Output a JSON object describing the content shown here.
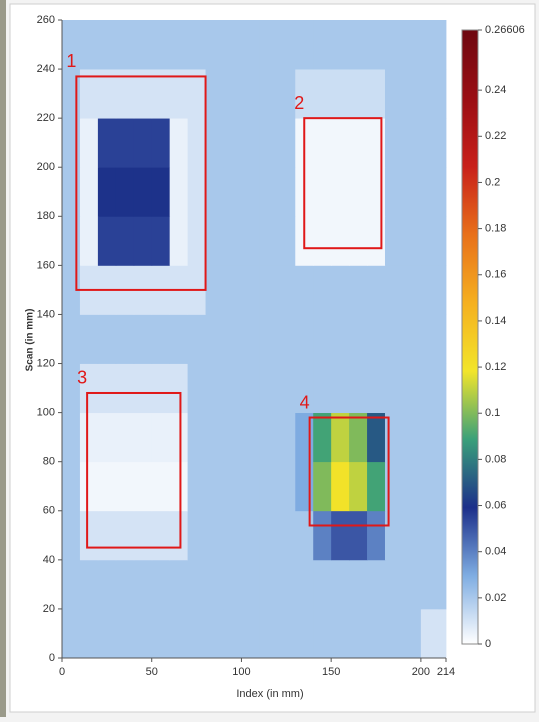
{
  "chart_data": {
    "type": "heatmap",
    "x_label": "Index (in mm)",
    "y_label": "Scan (in mm)",
    "xlim": [
      0,
      214
    ],
    "ylim": [
      0,
      260
    ],
    "xticks": [
      0,
      50,
      100,
      150,
      200,
      214
    ],
    "yticks": [
      0,
      20,
      40,
      60,
      80,
      100,
      120,
      140,
      160,
      180,
      200,
      220,
      240,
      260
    ],
    "x_bins": [
      0,
      10,
      20,
      30,
      40,
      50,
      60,
      70,
      80,
      90,
      100,
      110,
      120,
      130,
      140,
      150,
      160,
      170,
      180,
      190,
      200,
      210,
      214
    ],
    "y_bins": [
      0,
      20,
      40,
      60,
      80,
      100,
      120,
      140,
      160,
      180,
      200,
      220,
      240,
      260
    ],
    "z": [
      [
        0.02,
        0.02,
        0.02,
        0.02,
        0.02,
        0.02,
        0.02,
        0.02,
        0.02,
        0.02,
        0.02,
        0.02,
        0.02,
        0.02,
        0.02,
        0.02,
        0.02,
        0.02,
        0.02,
        0.02,
        0.01,
        0.01
      ],
      [
        0.02,
        0.02,
        0.02,
        0.02,
        0.02,
        0.02,
        0.02,
        0.02,
        0.02,
        0.02,
        0.02,
        0.02,
        0.02,
        0.02,
        0.02,
        0.02,
        0.02,
        0.02,
        0.02,
        0.02,
        0.02,
        0.02
      ],
      [
        0.02,
        0.01,
        0.01,
        0.01,
        0.01,
        0.01,
        0.01,
        0.02,
        0.02,
        0.02,
        0.02,
        0.02,
        0.02,
        0.02,
        0.04,
        0.05,
        0.05,
        0.04,
        0.02,
        0.02,
        0.02,
        0.02
      ],
      [
        0.02,
        0.003,
        0.003,
        0.003,
        0.003,
        0.003,
        0.003,
        0.02,
        0.02,
        0.02,
        0.02,
        0.02,
        0.02,
        0.03,
        0.1,
        0.12,
        0.11,
        0.09,
        0.02,
        0.02,
        0.02,
        0.02
      ],
      [
        0.02,
        0.005,
        0.005,
        0.005,
        0.005,
        0.005,
        0.005,
        0.02,
        0.02,
        0.02,
        0.02,
        0.02,
        0.02,
        0.03,
        0.09,
        0.11,
        0.1,
        0.07,
        0.02,
        0.02,
        0.02,
        0.02
      ],
      [
        0.02,
        0.01,
        0.01,
        0.01,
        0.01,
        0.01,
        0.01,
        0.02,
        0.02,
        0.02,
        0.02,
        0.02,
        0.02,
        0.02,
        0.02,
        0.02,
        0.02,
        0.02,
        0.02,
        0.02,
        0.02,
        0.02
      ],
      [
        0.02,
        0.02,
        0.02,
        0.02,
        0.02,
        0.02,
        0.02,
        0.02,
        0.02,
        0.02,
        0.02,
        0.02,
        0.02,
        0.02,
        0.02,
        0.02,
        0.02,
        0.02,
        0.02,
        0.02,
        0.02,
        0.02
      ],
      [
        0.02,
        0.01,
        0.01,
        0.01,
        0.01,
        0.01,
        0.01,
        0.01,
        0.02,
        0.02,
        0.02,
        0.02,
        0.02,
        0.02,
        0.02,
        0.02,
        0.02,
        0.02,
        0.02,
        0.02,
        0.02,
        0.02
      ],
      [
        0.02,
        0.005,
        0.055,
        0.055,
        0.055,
        0.055,
        0.005,
        0.01,
        0.02,
        0.02,
        0.02,
        0.02,
        0.02,
        0.003,
        0.003,
        0.003,
        0.003,
        0.003,
        0.02,
        0.02,
        0.02,
        0.02
      ],
      [
        0.02,
        0.005,
        0.06,
        0.06,
        0.06,
        0.06,
        0.005,
        0.01,
        0.02,
        0.02,
        0.02,
        0.02,
        0.02,
        0.003,
        0.003,
        0.003,
        0.003,
        0.003,
        0.02,
        0.02,
        0.02,
        0.02
      ],
      [
        0.02,
        0.005,
        0.055,
        0.055,
        0.055,
        0.055,
        0.005,
        0.01,
        0.02,
        0.02,
        0.02,
        0.02,
        0.02,
        0.003,
        0.003,
        0.003,
        0.003,
        0.003,
        0.02,
        0.02,
        0.02,
        0.02
      ],
      [
        0.02,
        0.01,
        0.01,
        0.01,
        0.01,
        0.01,
        0.01,
        0.01,
        0.02,
        0.02,
        0.02,
        0.02,
        0.02,
        0.012,
        0.012,
        0.012,
        0.012,
        0.012,
        0.02,
        0.02,
        0.02,
        0.02
      ],
      [
        0.02,
        0.02,
        0.02,
        0.02,
        0.02,
        0.02,
        0.02,
        0.02,
        0.02,
        0.02,
        0.02,
        0.02,
        0.02,
        0.02,
        0.02,
        0.02,
        0.02,
        0.02,
        0.02,
        0.02,
        0.02,
        0.02
      ]
    ],
    "zlim": [
      0,
      0.26606
    ],
    "zticks": [
      0,
      0.02,
      0.04,
      0.06,
      0.08,
      0.1,
      0.12,
      0.14,
      0.16,
      0.18,
      0.2,
      0.22,
      0.24,
      0.26606
    ],
    "colors": [
      "#ffffff",
      "#7fadE2",
      "#1c2f8a",
      "#3aa07a",
      "#f2e52a",
      "#f5b020",
      "#e8701a",
      "#c8201a",
      "#9a0e14",
      "#6e0810"
    ],
    "regions": [
      {
        "label": "1",
        "xlim": [
          8,
          80
        ],
        "ylim": [
          150,
          237
        ],
        "color": "#e01818"
      },
      {
        "label": "2",
        "xlim": [
          135,
          178
        ],
        "ylim": [
          167,
          220
        ],
        "color": "#e01818"
      },
      {
        "label": "3",
        "xlim": [
          14,
          66
        ],
        "ylim": [
          45,
          108
        ],
        "color": "#e01818"
      },
      {
        "label": "4",
        "xlim": [
          138,
          182
        ],
        "ylim": [
          54,
          98
        ],
        "color": "#e01818"
      }
    ]
  }
}
